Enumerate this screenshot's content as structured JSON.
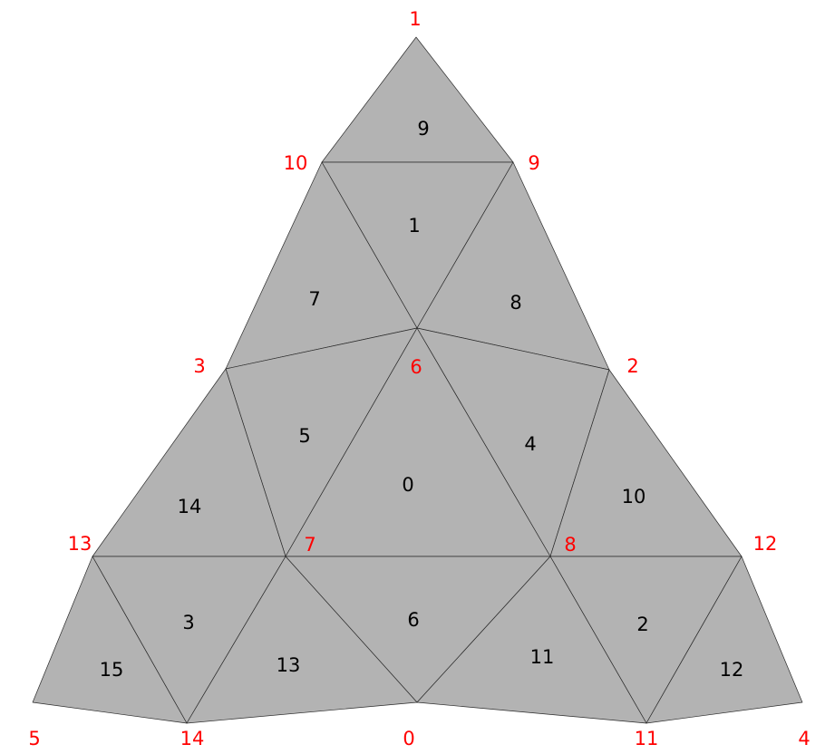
{
  "colors": {
    "face_fill": "#b3b3b3",
    "edge": "#2b2b2b",
    "face_label": "#000000",
    "vertex_label": "#ff0000",
    "background": "#ffffff"
  },
  "vertex_labels": [
    "1",
    "10",
    "9",
    "3",
    "6",
    "2",
    "13",
    "7",
    "8",
    "12",
    "5",
    "14",
    "0",
    "11",
    "4"
  ],
  "face_labels": [
    "9",
    "1",
    "7",
    "8",
    "5",
    "4",
    "0",
    "14",
    "10",
    "3",
    "6",
    "2",
    "15",
    "13",
    "11",
    "12"
  ]
}
